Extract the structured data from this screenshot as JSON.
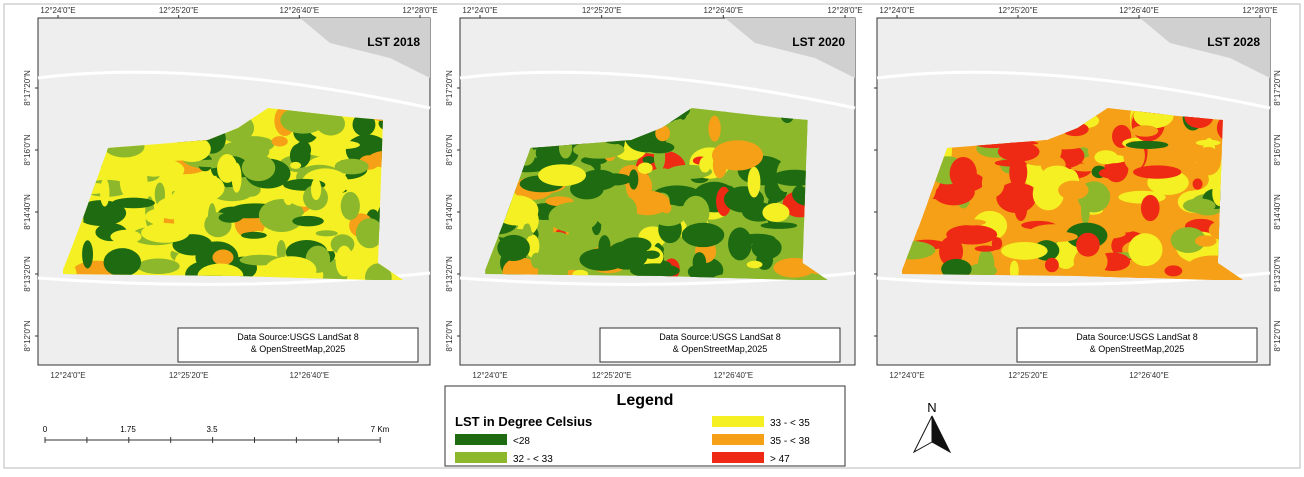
{
  "panels": [
    {
      "title": "LST 2018",
      "source": [
        "Data Source:USGS LandSat 8",
        "& OpenStreetMap,2025"
      ]
    },
    {
      "title": "LST 2020",
      "source": [
        "Data Source:USGS LandSat 8",
        "& OpenStreetMap,2025"
      ]
    },
    {
      "title": "LST 2028",
      "source": [
        "Data Source:USGS LandSat 8",
        "& OpenStreetMap,2025"
      ]
    }
  ],
  "lon_labels": [
    "12°24'0\"E",
    "12°25'20\"E",
    "12°26'40\"E",
    "12°28'0\"E"
  ],
  "lat_labels": [
    "8°17'20\"N",
    "8°16'0\"N",
    "8°14'40\"N",
    "8°13'20\"N",
    "8°12'0\"N"
  ],
  "legend": {
    "title": "Legend",
    "subtitle": "LST in Degree Celsius",
    "items": [
      {
        "label": "<28",
        "color": "#1e6b12"
      },
      {
        "label": "32 - < 33",
        "color": "#8db82c"
      },
      {
        "label": "33 - < 35",
        "color": "#f5f023"
      },
      {
        "label": "35 - < 38",
        "color": "#f5a016"
      },
      {
        "label": "> 47",
        "color": "#ee2a14"
      }
    ]
  },
  "scale_bar": {
    "labels": [
      "0",
      "1.75",
      "3.5",
      "7 Km"
    ]
  },
  "north": "N"
}
